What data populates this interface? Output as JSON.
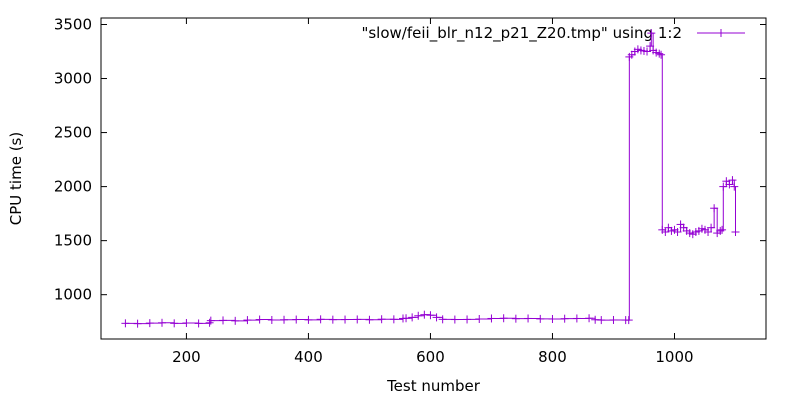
{
  "chart_data": {
    "type": "line",
    "title": "",
    "xlabel": "Test number",
    "ylabel": "CPU time (s)",
    "xlim": [
      60,
      1150
    ],
    "ylim": [
      590,
      3560
    ],
    "x_ticks": [
      200,
      400,
      600,
      800,
      1000
    ],
    "y_ticks": [
      1000,
      1500,
      2000,
      2500,
      3000,
      3500
    ],
    "grid": false,
    "legend_position": "top-right",
    "series": [
      {
        "name": "\"slow/feii_blr_n12_p21_Z20.tmp\" using 1:2",
        "color": "#9400d3",
        "marker": "plus",
        "x": [
          100,
          120,
          140,
          160,
          180,
          200,
          220,
          238,
          240,
          260,
          280,
          300,
          320,
          340,
          360,
          380,
          400,
          420,
          440,
          460,
          480,
          500,
          520,
          540,
          555,
          560,
          570,
          580,
          590,
          600,
          610,
          620,
          640,
          660,
          680,
          700,
          720,
          740,
          760,
          780,
          800,
          820,
          840,
          860,
          870,
          880,
          900,
          920,
          925,
          926,
          930,
          935,
          940,
          945,
          950,
          955,
          960,
          962,
          965,
          970,
          975,
          978,
          980,
          985,
          990,
          995,
          1000,
          1005,
          1010,
          1015,
          1020,
          1025,
          1030,
          1035,
          1040,
          1045,
          1050,
          1055,
          1060,
          1065,
          1070,
          1075,
          1078,
          1080,
          1085,
          1090,
          1095,
          1098,
          1100
        ],
        "y": [
          735,
          732,
          737,
          740,
          735,
          738,
          734,
          740,
          760,
          762,
          758,
          765,
          770,
          766,
          768,
          770,
          767,
          772,
          769,
          770,
          771,
          768,
          773,
          772,
          780,
          782,
          790,
          805,
          815,
          810,
          790,
          772,
          770,
          771,
          775,
          780,
          782,
          778,
          780,
          776,
          775,
          778,
          780,
          782,
          768,
          765,
          766,
          765,
          765,
          3200,
          3220,
          3250,
          3270,
          3260,
          3255,
          3250,
          3300,
          3420,
          3260,
          3240,
          3230,
          3220,
          1600,
          1580,
          1620,
          1590,
          1600,
          1580,
          1650,
          1620,
          1590,
          1570,
          1560,
          1580,
          1590,
          1610,
          1600,
          1580,
          1620,
          1800,
          1570,
          1590,
          1600,
          2000,
          2050,
          2020,
          2060,
          2000,
          1580
        ]
      }
    ]
  }
}
